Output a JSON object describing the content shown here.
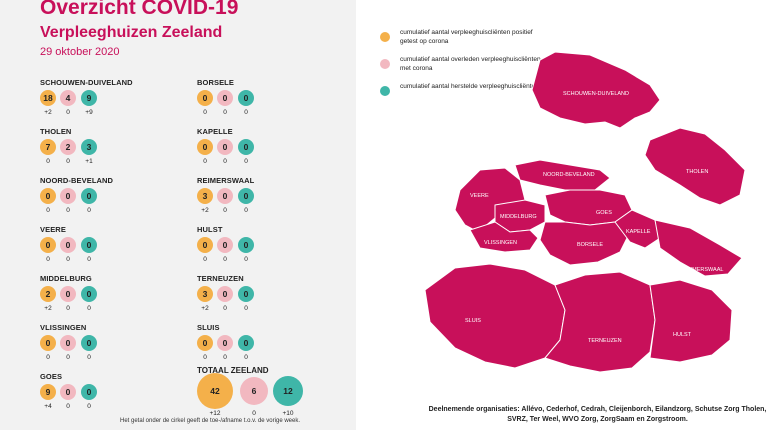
{
  "header": {
    "title": "Overzicht COVID-19",
    "subtitle": "Verpleeghuizen Zeeland",
    "date": "29 oktober 2020"
  },
  "colors": {
    "positief": "#f4b04a",
    "overleden": "#f2b8c0",
    "hersteld": "#3fb6a8",
    "map": "#c8105a",
    "title": "#c8105a"
  },
  "regions": [
    {
      "name": "SCHOUWEN-DUIVELAND",
      "values": [
        "18",
        "4",
        "9"
      ],
      "deltas": [
        "+2",
        "0",
        "+9"
      ]
    },
    {
      "name": "THOLEN",
      "values": [
        "7",
        "2",
        "3"
      ],
      "deltas": [
        "0",
        "0",
        "+1"
      ]
    },
    {
      "name": "NOORD-BEVELAND",
      "values": [
        "0",
        "0",
        "0"
      ],
      "deltas": [
        "0",
        "0",
        "0"
      ]
    },
    {
      "name": "VEERE",
      "values": [
        "0",
        "0",
        "0"
      ],
      "deltas": [
        "0",
        "0",
        "0"
      ]
    },
    {
      "name": "MIDDELBURG",
      "values": [
        "2",
        "0",
        "0"
      ],
      "deltas": [
        "+2",
        "0",
        "0"
      ]
    },
    {
      "name": "VLISSINGEN",
      "values": [
        "0",
        "0",
        "0"
      ],
      "deltas": [
        "0",
        "0",
        "0"
      ]
    },
    {
      "name": "GOES",
      "values": [
        "9",
        "0",
        "0"
      ],
      "deltas": [
        "+4",
        "0",
        "0"
      ]
    },
    {
      "name": "BORSELE",
      "values": [
        "0",
        "0",
        "0"
      ],
      "deltas": [
        "0",
        "0",
        "0"
      ]
    },
    {
      "name": "KAPELLE",
      "values": [
        "0",
        "0",
        "0"
      ],
      "deltas": [
        "0",
        "0",
        "0"
      ]
    },
    {
      "name": "REIMERSWAAL",
      "values": [
        "3",
        "0",
        "0"
      ],
      "deltas": [
        "+2",
        "0",
        "0"
      ]
    },
    {
      "name": "HULST",
      "values": [
        "0",
        "0",
        "0"
      ],
      "deltas": [
        "0",
        "0",
        "0"
      ]
    },
    {
      "name": "TERNEUZEN",
      "values": [
        "3",
        "0",
        "0"
      ],
      "deltas": [
        "+2",
        "0",
        "0"
      ]
    },
    {
      "name": "SLUIS",
      "values": [
        "0",
        "0",
        "0"
      ],
      "deltas": [
        "0",
        "0",
        "0"
      ]
    }
  ],
  "total": {
    "title": "TOTAAL ZEELAND",
    "values": [
      "42",
      "6",
      "12"
    ],
    "deltas": [
      "+12",
      "0",
      "+10"
    ]
  },
  "footnote": "Het getal onder de cirkel geeft de toe-/afname t.o.v. de vorige week.",
  "legend": [
    {
      "text": "cumulatief aantal verpleeghuiscliënten positief getest op corona",
      "icon": "orange-dot-icon"
    },
    {
      "text": "cumulatief aantal overleden verpleeghuiscliënten met corona",
      "icon": "pink-dot-icon"
    },
    {
      "text": "cumulatief aantal herstelde verpleeghuiscliënten",
      "icon": "teal-dot-icon"
    }
  ],
  "map_labels": [
    "SCHOUWEN-DUIVELAND",
    "THOLEN",
    "NOORD-BEVELAND",
    "VEERE",
    "MIDDELBURG",
    "VLISSINGEN",
    "GOES",
    "BORSELE",
    "KAPELLE",
    "REIMERSWAAL",
    "SLUIS",
    "TERNEUZEN",
    "HULST"
  ],
  "credits": "Deelnemende organisaties: Allévo, Cederhof, Cedrah, Cleijenborch, Eilandzorg, Schutse Zorg Tholen, SVRZ, Ter Weel, WVO Zorg, ZorgSaam en Zorgstroom."
}
